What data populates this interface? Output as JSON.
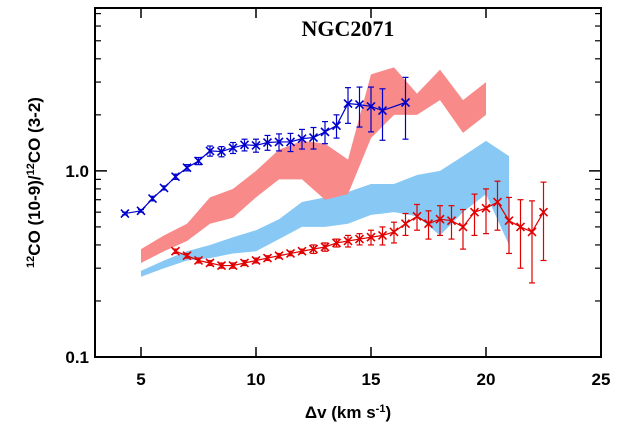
{
  "chart_data": {
    "type": "line",
    "title": "NGC2071",
    "xlabel": [
      {
        "text": "Δv (km s"
      },
      {
        "text": "-1",
        "sup": true
      },
      {
        "text": ")"
      }
    ],
    "ylabel": [
      {
        "text": "12",
        "sup": true
      },
      {
        "text": "CO (10-9)/"
      },
      {
        "text": "12",
        "sup": true
      },
      {
        "text": "CO (3-2)"
      }
    ],
    "xlim": [
      3,
      25
    ],
    "xticks": [
      5,
      10,
      15,
      20,
      25
    ],
    "ylim": [
      0.1,
      7.5
    ],
    "ylog": true,
    "yticks": [
      0.1,
      {
        "value": 1,
        "label": "1.0"
      }
    ],
    "yminorticks": [
      0.2,
      0.3,
      0.4,
      0.5,
      0.6,
      0.7,
      0.8,
      0.9,
      2,
      3,
      4,
      5,
      6,
      7
    ],
    "bands": [
      {
        "color": "#87c8f5",
        "x": [
          5,
          6,
          7,
          8,
          9,
          10,
          11,
          12,
          13,
          14,
          15,
          16,
          17,
          18,
          19,
          20,
          21
        ],
        "lower": [
          0.27,
          0.3,
          0.33,
          0.34,
          0.36,
          0.37,
          0.43,
          0.5,
          0.5,
          0.52,
          0.58,
          0.6,
          0.57,
          0.45,
          0.6,
          0.75,
          0.4
        ],
        "upper": [
          0.29,
          0.33,
          0.37,
          0.4,
          0.44,
          0.48,
          0.55,
          0.68,
          0.72,
          0.77,
          0.85,
          0.85,
          0.95,
          1.0,
          1.2,
          1.45,
          1.2
        ]
      },
      {
        "color": "#f88a8a",
        "x": [
          5,
          6,
          7,
          8,
          9,
          10,
          11,
          12,
          13,
          14,
          15,
          16,
          17,
          18,
          19,
          20
        ],
        "lower": [
          0.32,
          0.37,
          0.42,
          0.52,
          0.56,
          0.72,
          0.9,
          0.9,
          0.7,
          0.75,
          1.5,
          2.0,
          2.0,
          2.4,
          1.6,
          2.0
        ],
        "upper": [
          0.38,
          0.45,
          0.52,
          0.72,
          0.8,
          1.0,
          1.3,
          1.45,
          1.4,
          1.15,
          3.3,
          3.6,
          2.6,
          3.5,
          2.4,
          3.0
        ]
      }
    ],
    "series": [
      {
        "color": "#0000cc",
        "x": [
          4.3,
          5,
          5.5,
          6,
          6.5,
          7,
          7.5,
          8,
          8.5,
          9,
          9.5,
          10,
          10.5,
          11,
          11.5,
          12,
          12.5,
          13,
          13.5,
          14,
          14.5,
          15,
          15.5,
          16.5
        ],
        "values": [
          0.59,
          0.61,
          0.71,
          0.81,
          0.93,
          1.04,
          1.13,
          1.28,
          1.27,
          1.33,
          1.38,
          1.37,
          1.42,
          1.43,
          1.43,
          1.49,
          1.51,
          1.62,
          1.75,
          2.3,
          2.27,
          2.22,
          2.11,
          2.33
        ],
        "errors": [
          0.01,
          0.01,
          0.02,
          0.02,
          0.03,
          0.04,
          0.05,
          0.08,
          0.08,
          0.09,
          0.1,
          0.11,
          0.13,
          0.15,
          0.16,
          0.18,
          0.2,
          0.22,
          0.25,
          0.5,
          0.55,
          0.6,
          0.65,
          0.85
        ]
      },
      {
        "color": "#e00000",
        "x": [
          6.5,
          7,
          7.5,
          8,
          8.5,
          9,
          9.5,
          10,
          10.5,
          11,
          11.5,
          12,
          12.5,
          13,
          13.5,
          14,
          14.5,
          15,
          15.5,
          16,
          16.5,
          17,
          17.5,
          18,
          18.5,
          19,
          19.5,
          20,
          20.5,
          21,
          21.5,
          22,
          22.5
        ],
        "values": [
          0.37,
          0.35,
          0.33,
          0.32,
          0.31,
          0.31,
          0.32,
          0.33,
          0.34,
          0.35,
          0.36,
          0.37,
          0.38,
          0.39,
          0.41,
          0.42,
          0.43,
          0.44,
          0.45,
          0.47,
          0.52,
          0.57,
          0.52,
          0.55,
          0.54,
          0.5,
          0.6,
          0.63,
          0.68,
          0.54,
          0.5,
          0.47,
          0.6
        ],
        "errors": [
          0.01,
          0.01,
          0.01,
          0.01,
          0.01,
          0.01,
          0.01,
          0.01,
          0.01,
          0.01,
          0.01,
          0.01,
          0.02,
          0.02,
          0.02,
          0.03,
          0.03,
          0.04,
          0.05,
          0.06,
          0.07,
          0.09,
          0.09,
          0.1,
          0.11,
          0.12,
          0.15,
          0.17,
          0.2,
          0.18,
          0.2,
          0.22,
          0.27
        ]
      }
    ]
  }
}
